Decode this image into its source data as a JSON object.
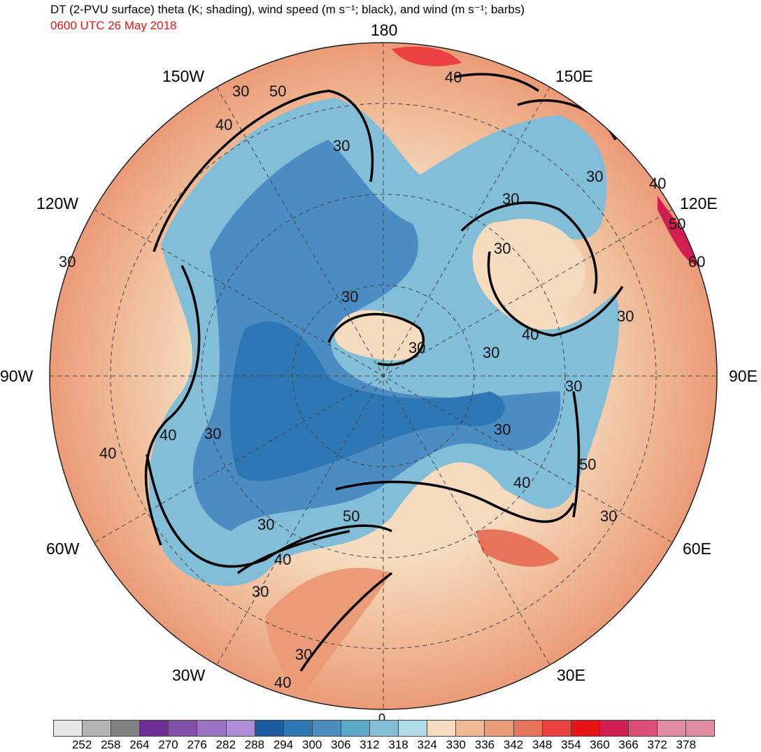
{
  "header": {
    "title": "DT (2-PVU surface) theta (K; shading), wind speed (m s⁻¹; black), and wind (m s⁻¹; barbs)",
    "valid_time": "0600 UTC 26 May 2018",
    "valid_time_color": "#ee1111"
  },
  "map": {
    "projection": "north-polar-stereographic",
    "longitude_labels": {
      "lon_180": "180",
      "lon_150w": "150W",
      "lon_150e": "150E",
      "lon_120w": "120W",
      "lon_120e": "120E",
      "lon_90w": "90W",
      "lon_90e": "90E",
      "lon_60w": "60W",
      "lon_60e": "60E",
      "lon_30w": "30W",
      "lon_30e": "30E",
      "lon_0": "0"
    },
    "wind_speed_contour_labels": [
      "30",
      "40",
      "50",
      "60"
    ]
  },
  "colorbar": {
    "units": "K",
    "ticks": [
      "252",
      "258",
      "264",
      "270",
      "276",
      "282",
      "288",
      "294",
      "300",
      "306",
      "312",
      "318",
      "324",
      "330",
      "336",
      "342",
      "348",
      "354",
      "360",
      "366",
      "372",
      "378"
    ],
    "colors": [
      "#e6e6e6",
      "#b4b4b4",
      "#828282",
      "#6e2d96",
      "#8250aa",
      "#9b73c3",
      "#af8cd7",
      "#1e5aa0",
      "#2d78b4",
      "#4b8cc3",
      "#5aaac8",
      "#82bed7",
      "#afdce6",
      "#f5dcbe",
      "#f0b996",
      "#eb9b78",
      "#e6735a",
      "#eb4141",
      "#e61414",
      "#d21e50",
      "#dc5078",
      "#e18ca0"
    ]
  }
}
